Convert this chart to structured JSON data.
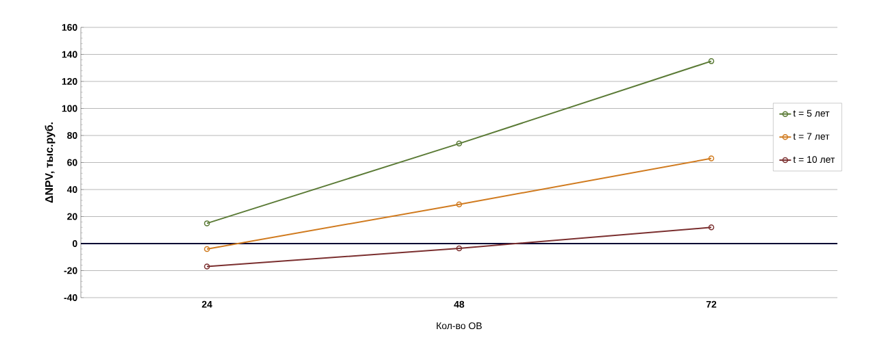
{
  "chart_data": {
    "type": "line",
    "xlabel": "Кол-во ОВ",
    "ylabel": "ΔNPV, тыс.руб.",
    "categories": [
      "24",
      "48",
      "72"
    ],
    "series": [
      {
        "name": "t = 5 лет",
        "color": "#5a7a35",
        "values": [
          15,
          74,
          135
        ]
      },
      {
        "name": "t = 7 лет",
        "color": "#d07a1e",
        "values": [
          -4,
          29,
          63
        ]
      },
      {
        "name": "t = 10 лет",
        "color": "#7a2e2e",
        "values": [
          -17,
          -3.5,
          12
        ]
      }
    ],
    "ylim": [
      -40,
      160
    ],
    "yticks": [
      -40,
      -20,
      0,
      20,
      40,
      60,
      80,
      100,
      120,
      140,
      160
    ],
    "grid": "y",
    "legend": "right",
    "marker": "circle",
    "line_style": "solid"
  }
}
